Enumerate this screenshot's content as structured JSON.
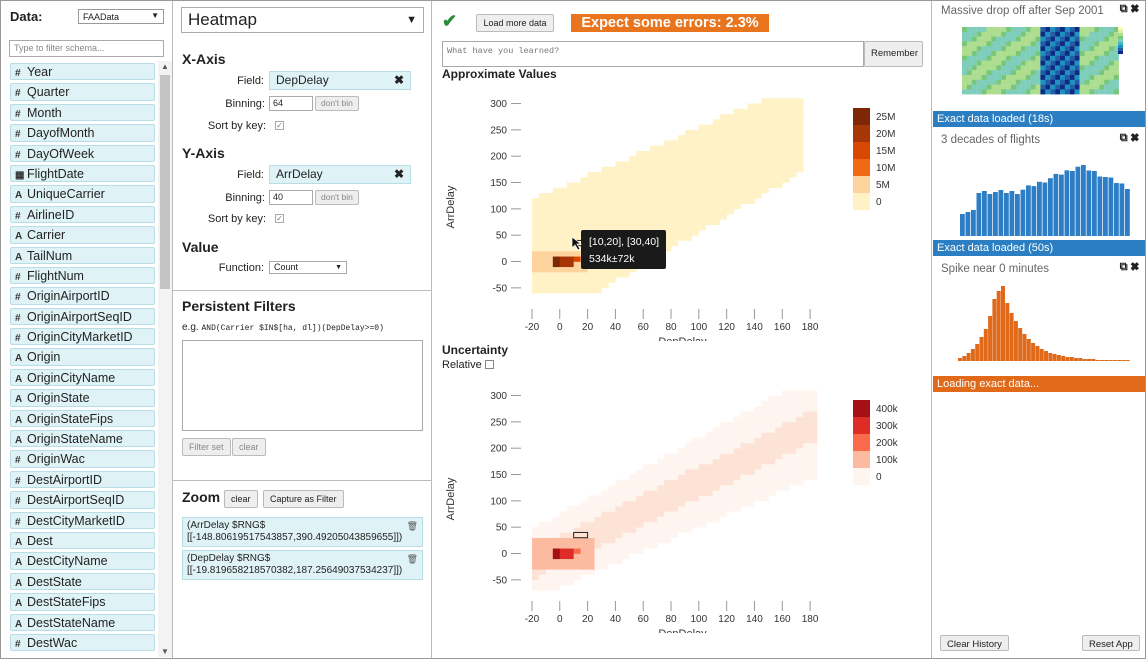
{
  "sidebar": {
    "data_label": "Data:",
    "dataset": "FAAData",
    "filter_placeholder": "Type to filter schema...",
    "fields": [
      {
        "type": "#",
        "name": "Year"
      },
      {
        "type": "#",
        "name": "Quarter"
      },
      {
        "type": "#",
        "name": "Month"
      },
      {
        "type": "#",
        "name": "DayofMonth"
      },
      {
        "type": "#",
        "name": "DayOfWeek"
      },
      {
        "type": "cal",
        "name": "FlightDate"
      },
      {
        "type": "A",
        "name": "UniqueCarrier"
      },
      {
        "type": "#",
        "name": "AirlineID"
      },
      {
        "type": "A",
        "name": "Carrier"
      },
      {
        "type": "A",
        "name": "TailNum"
      },
      {
        "type": "#",
        "name": "FlightNum"
      },
      {
        "type": "#",
        "name": "OriginAirportID"
      },
      {
        "type": "#",
        "name": "OriginAirportSeqID"
      },
      {
        "type": "#",
        "name": "OriginCityMarketID"
      },
      {
        "type": "A",
        "name": "Origin"
      },
      {
        "type": "A",
        "name": "OriginCityName"
      },
      {
        "type": "A",
        "name": "OriginState"
      },
      {
        "type": "A",
        "name": "OriginStateFips"
      },
      {
        "type": "A",
        "name": "OriginStateName"
      },
      {
        "type": "#",
        "name": "OriginWac"
      },
      {
        "type": "#",
        "name": "DestAirportID"
      },
      {
        "type": "#",
        "name": "DestAirportSeqID"
      },
      {
        "type": "#",
        "name": "DestCityMarketID"
      },
      {
        "type": "A",
        "name": "Dest"
      },
      {
        "type": "A",
        "name": "DestCityName"
      },
      {
        "type": "A",
        "name": "DestState"
      },
      {
        "type": "A",
        "name": "DestStateFips"
      },
      {
        "type": "A",
        "name": "DestStateName"
      },
      {
        "type": "#",
        "name": "DestWac"
      }
    ]
  },
  "config": {
    "vis_type": "Heatmap",
    "x_axis": {
      "title": "X-Axis",
      "field_label": "Field:",
      "field": "DepDelay",
      "binning_label": "Binning:",
      "binning": "64",
      "dont_bin": "don't bin",
      "sort_label": "Sort by key:",
      "sort_check": "✓"
    },
    "y_axis": {
      "title": "Y-Axis",
      "field_label": "Field:",
      "field": "ArrDelay",
      "binning_label": "Binning:",
      "binning": "40",
      "dont_bin": "don't bin",
      "sort_label": "Sort by key:",
      "sort_check": "✓"
    },
    "value": {
      "title": "Value",
      "function_label": "Function:",
      "function": "Count"
    },
    "filters": {
      "title": "Persistent Filters",
      "eg_prefix": "e.g.",
      "eg_code": "AND(Carrier $IN$[ha, dl])(DepDelay>=0)",
      "filter_set": "Filter set",
      "clear": "clear"
    },
    "zoom": {
      "title": "Zoom",
      "clear": "clear",
      "capture": "Capture as Filter",
      "items": [
        {
          "line1": "(ArrDelay $RNG$",
          "line2": "[[-148.80619517543857,390.49205043859655]])"
        },
        {
          "line1": "(DepDelay $RNG$",
          "line2": "[[-19.819658218570382,187.25649037534237]])"
        }
      ]
    }
  },
  "main": {
    "check_icon": "✔",
    "load_more": "Load more data",
    "error_banner": "Expect some errors: 2.3%",
    "learned_placeholder": "What have you learned?",
    "remember": "Remember",
    "approx_title": "Approximate Values",
    "uncertainty_title": "Uncertainty",
    "relative_label": "Relative",
    "tooltip": {
      "line1": "[10,20], [30,40]",
      "line2": "534k±72k"
    }
  },
  "chart_data": [
    {
      "type": "heatmap",
      "title": "Approximate Values",
      "xlabel": "DepDelay",
      "ylabel": "ArrDelay",
      "xticks": [
        -20,
        0,
        20,
        40,
        60,
        80,
        100,
        120,
        140,
        160,
        180
      ],
      "yticks": [
        -50,
        0,
        50,
        100,
        150,
        200,
        250,
        300
      ],
      "xlim": [
        -25,
        190
      ],
      "ylim": [
        -75,
        320
      ],
      "legend": {
        "labels": [
          "25M",
          "20M",
          "15M",
          "10M",
          "5M",
          "0"
        ],
        "colors": [
          "#7f2704",
          "#a63603",
          "#d94801",
          "#f16913",
          "#fdd49e",
          "#fff2c6"
        ]
      },
      "selected_cell": {
        "x": [
          10,
          20
        ],
        "y": [
          30,
          40
        ]
      }
    },
    {
      "type": "heatmap",
      "title": "Uncertainty",
      "xlabel": "DepDelay",
      "ylabel": "ArrDelay",
      "xticks": [
        -20,
        0,
        20,
        40,
        60,
        80,
        100,
        120,
        140,
        160,
        180
      ],
      "yticks": [
        -50,
        0,
        50,
        100,
        150,
        200,
        250,
        300
      ],
      "xlim": [
        -25,
        190
      ],
      "ylim": [
        -75,
        320
      ],
      "legend": {
        "labels": [
          "400k",
          "300k",
          "200k",
          "100k",
          "0"
        ],
        "colors": [
          "#a50f15",
          "#de2d26",
          "#fb6a4a",
          "#fcbba1",
          "#fff5f0"
        ]
      },
      "selected_cell": {
        "x": [
          10,
          20
        ],
        "y": [
          30,
          40
        ]
      }
    }
  ],
  "history": {
    "cards": [
      {
        "title": "Massive drop off after Sep 2001",
        "status": "Exact data loaded (18s)",
        "status_color": "#2a7ec1",
        "kind": "heatmap"
      },
      {
        "title": "3 decades of flights",
        "status": "Exact data loaded (50s)",
        "status_color": "#2a7ec1",
        "kind": "bars-blue"
      },
      {
        "title": "Spike near 0 minutes",
        "status": "Loading exact data...",
        "status_color": "#e06a1a",
        "kind": "bars-orange"
      }
    ],
    "copy_icon": "⧉",
    "close_icon": "✖",
    "clear_history": "Clear History",
    "reset_app": "Reset App"
  }
}
